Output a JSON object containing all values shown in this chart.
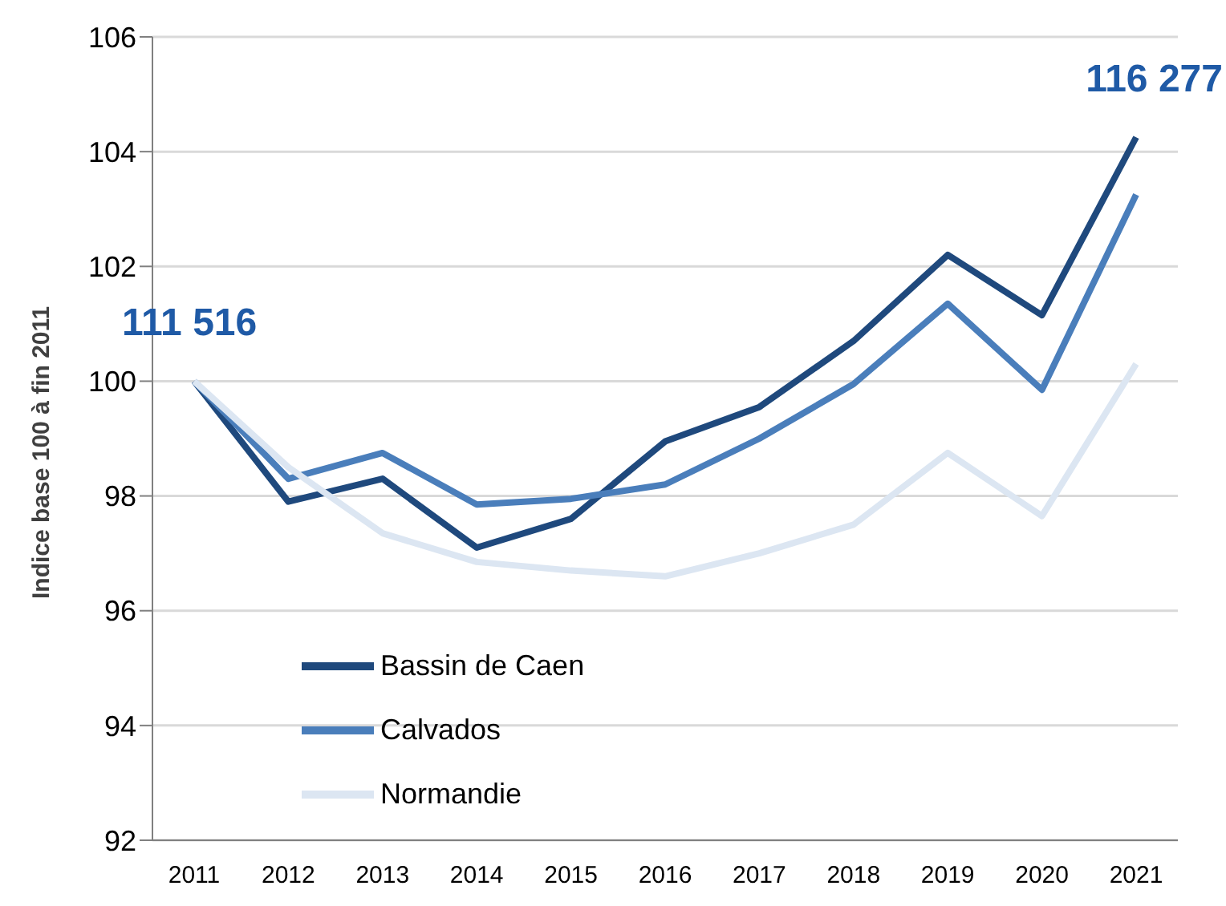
{
  "chart_data": {
    "type": "line",
    "ylabel": "Indice base 100 à fin 2011",
    "categories": [
      "2011",
      "2012",
      "2013",
      "2014",
      "2015",
      "2016",
      "2017",
      "2018",
      "2019",
      "2020",
      "2021"
    ],
    "series": [
      {
        "name": "Bassin de Caen",
        "color": "#1f497d",
        "values": [
          100,
          97.9,
          98.3,
          97.1,
          97.6,
          98.95,
          99.55,
          100.7,
          102.2,
          101.15,
          104.25
        ]
      },
      {
        "name": "Calvados",
        "color": "#4a7ebb",
        "values": [
          100,
          98.3,
          98.75,
          97.85,
          97.95,
          98.2,
          99.0,
          99.95,
          101.35,
          99.85,
          103.25
        ]
      },
      {
        "name": "Normandie",
        "color": "#dce6f2",
        "values": [
          100,
          98.5,
          97.35,
          96.85,
          96.7,
          96.6,
          97.0,
          97.5,
          98.75,
          97.65,
          100.3
        ]
      }
    ],
    "ylim": [
      92,
      106
    ],
    "yticks": [
      92,
      94,
      96,
      98,
      100,
      102,
      104,
      106
    ],
    "grid": "y",
    "legend": "bottom left",
    "marker": "none",
    "line_style": "solid",
    "annotations": [
      "111 516",
      "116 277"
    ]
  }
}
